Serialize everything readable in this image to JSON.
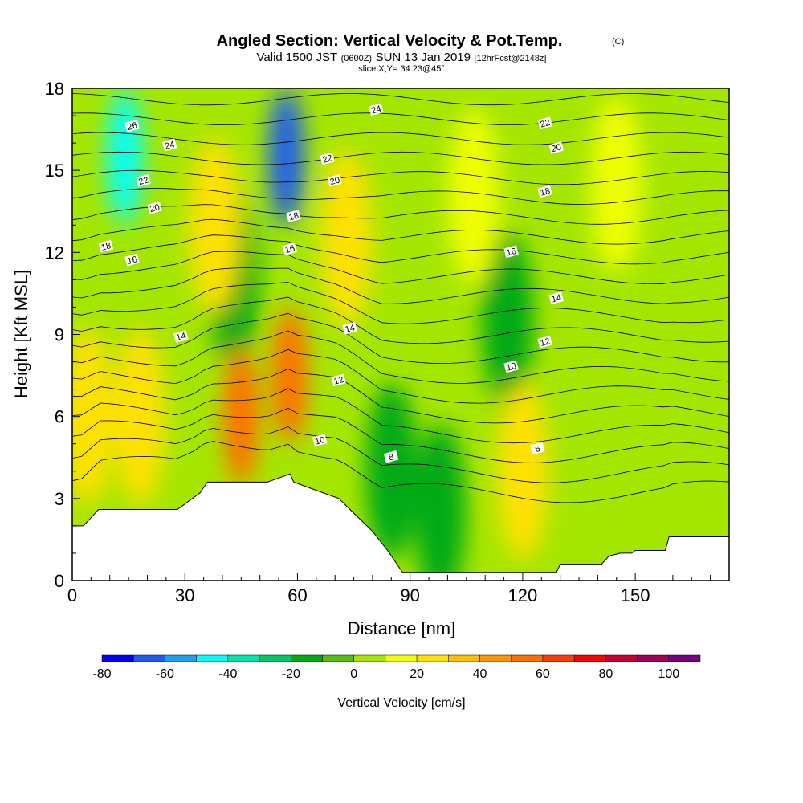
{
  "title": {
    "main": "Angled Section: Vertical Velocity & Pot.Temp.",
    "copyright": "(C)",
    "valid_prefix": "Valid 1500 JST",
    "valid_utc": "(0600Z)",
    "valid_date": "SUN 13 Jan 2019",
    "forecast": "[12hrFcst@2148z]",
    "slice": "slice X,Y= 34.23@45°"
  },
  "chart_data": {
    "type": "heatmap",
    "xlabel": "Distance [nm]",
    "ylabel": "Height [Kft MSL]",
    "xlim": [
      0,
      175
    ],
    "ylim": [
      0,
      18
    ],
    "x_ticks": [
      "0",
      "30",
      "60",
      "90",
      "120",
      "150"
    ],
    "y_ticks": [
      "0",
      "3",
      "6",
      "9",
      "12",
      "15",
      "18"
    ],
    "field": "Vertical Velocity",
    "units": "cm/s",
    "colorbar": {
      "label": "Vertical Velocity [cm/s]",
      "tick_labels": [
        "-80",
        "-60",
        "-40",
        "-20",
        "0",
        "20",
        "40",
        "60",
        "80",
        "100"
      ],
      "levels": [
        -80,
        -70,
        -60,
        -50,
        -40,
        -30,
        -20,
        -10,
        0,
        10,
        20,
        30,
        40,
        50,
        60,
        70,
        80,
        90,
        100,
        110
      ],
      "colors": [
        "#0000ff",
        "#1e5cf0",
        "#1e9ff0",
        "#00ffff",
        "#00e5a8",
        "#00c864",
        "#00aa14",
        "#55be14",
        "#a5e600",
        "#f0ff00",
        "#ffe100",
        "#ffbe00",
        "#ff9600",
        "#ff6e00",
        "#ff3c00",
        "#ff0000",
        "#c80032",
        "#a0005a",
        "#780082"
      ]
    },
    "features": [
      {
        "kind": "downdraft",
        "x": 14,
        "y": 15.5,
        "value": -45
      },
      {
        "kind": "downdraft",
        "x": 57,
        "y": 15.5,
        "value": -65
      },
      {
        "kind": "downdraft",
        "x": 43,
        "y": 11,
        "value": -15
      },
      {
        "kind": "downdraft",
        "x": 116,
        "y": 9.5,
        "value": -20
      },
      {
        "kind": "downdraft",
        "x": 85,
        "y": 4,
        "value": -18
      },
      {
        "kind": "downdraft",
        "x": 98,
        "y": 2.5,
        "value": -20
      },
      {
        "kind": "updraft",
        "x": 58,
        "y": 7.5,
        "value": 55
      },
      {
        "kind": "updraft",
        "x": 45,
        "y": 6,
        "value": 50
      },
      {
        "kind": "updraft",
        "x": 38,
        "y": 13,
        "value": 25
      },
      {
        "kind": "updraft",
        "x": 4,
        "y": 6,
        "value": 25
      },
      {
        "kind": "updraft",
        "x": 18,
        "y": 6,
        "value": 25
      },
      {
        "kind": "updraft",
        "x": 73,
        "y": 12.5,
        "value": 25
      },
      {
        "kind": "updraft",
        "x": 107,
        "y": 14,
        "value": 18
      },
      {
        "kind": "updraft",
        "x": 145,
        "y": 14.5,
        "value": 18
      },
      {
        "kind": "updraft",
        "x": 120,
        "y": 4,
        "value": 22
      }
    ],
    "terrain_kft": {
      "x": [
        0,
        3,
        5,
        7,
        28,
        31,
        34,
        36,
        52,
        58,
        59,
        65,
        71,
        74,
        77,
        80,
        84,
        88,
        129,
        130,
        141,
        143,
        146,
        149,
        150,
        158,
        159,
        175
      ],
      "y": [
        2.0,
        2.0,
        2.3,
        2.6,
        2.6,
        2.9,
        3.2,
        3.6,
        3.6,
        3.9,
        3.6,
        3.3,
        3.0,
        2.6,
        2.2,
        1.8,
        1.1,
        0.3,
        0.3,
        0.6,
        0.6,
        0.9,
        1.0,
        1.0,
        1.1,
        1.1,
        1.6,
        1.6
      ]
    },
    "pot_temp_contours": [
      {
        "level": "8",
        "label": "8",
        "label_x": 85,
        "label_y": 4.5
      },
      {
        "level": "6",
        "label": "6",
        "label_x": 124,
        "label_y": 4.8
      },
      {
        "level": "10",
        "label": "10",
        "label_x": 66,
        "label_y": 5.1
      },
      {
        "level": "10",
        "label": "10",
        "label_x": 117,
        "label_y": 7.8
      },
      {
        "level": "12",
        "label": "12",
        "label_x": 71,
        "label_y": 7.3
      },
      {
        "level": "12",
        "label": "12",
        "label_x": 126,
        "label_y": 8.7
      },
      {
        "level": "14",
        "label": "14",
        "label_x": 29,
        "label_y": 8.9
      },
      {
        "level": "14",
        "label": "14",
        "label_x": 74,
        "label_y": 9.2
      },
      {
        "level": "14",
        "label": "14",
        "label_x": 129,
        "label_y": 10.3
      },
      {
        "level": "16",
        "label": "16",
        "label_x": 16,
        "label_y": 11.7
      },
      {
        "level": "16",
        "label": "16",
        "label_x": 58,
        "label_y": 12.1
      },
      {
        "level": "16",
        "label": "16",
        "label_x": 117,
        "label_y": 12.0
      },
      {
        "level": "18",
        "label": "18",
        "label_x": 9,
        "label_y": 12.2
      },
      {
        "level": "18",
        "label": "18",
        "label_x": 59,
        "label_y": 13.3
      },
      {
        "level": "18",
        "label": "18",
        "label_x": 126,
        "label_y": 14.2
      },
      {
        "level": "20",
        "label": "20",
        "label_x": 22,
        "label_y": 13.6
      },
      {
        "level": "20",
        "label": "20",
        "label_x": 70,
        "label_y": 14.6
      },
      {
        "level": "20",
        "label": "20",
        "label_x": 129,
        "label_y": 15.8
      },
      {
        "level": "22",
        "label": "22",
        "label_x": 19,
        "label_y": 14.6
      },
      {
        "level": "22",
        "label": "22",
        "label_x": 68,
        "label_y": 15.4
      },
      {
        "level": "22",
        "label": "22",
        "label_x": 126,
        "label_y": 16.7
      },
      {
        "level": "24",
        "label": "24",
        "label_x": 26,
        "label_y": 15.9
      },
      {
        "level": "24",
        "label": "24",
        "label_x": 81,
        "label_y": 17.2
      },
      {
        "level": "26",
        "label": "26",
        "label_x": 16,
        "label_y": 16.6
      }
    ]
  }
}
